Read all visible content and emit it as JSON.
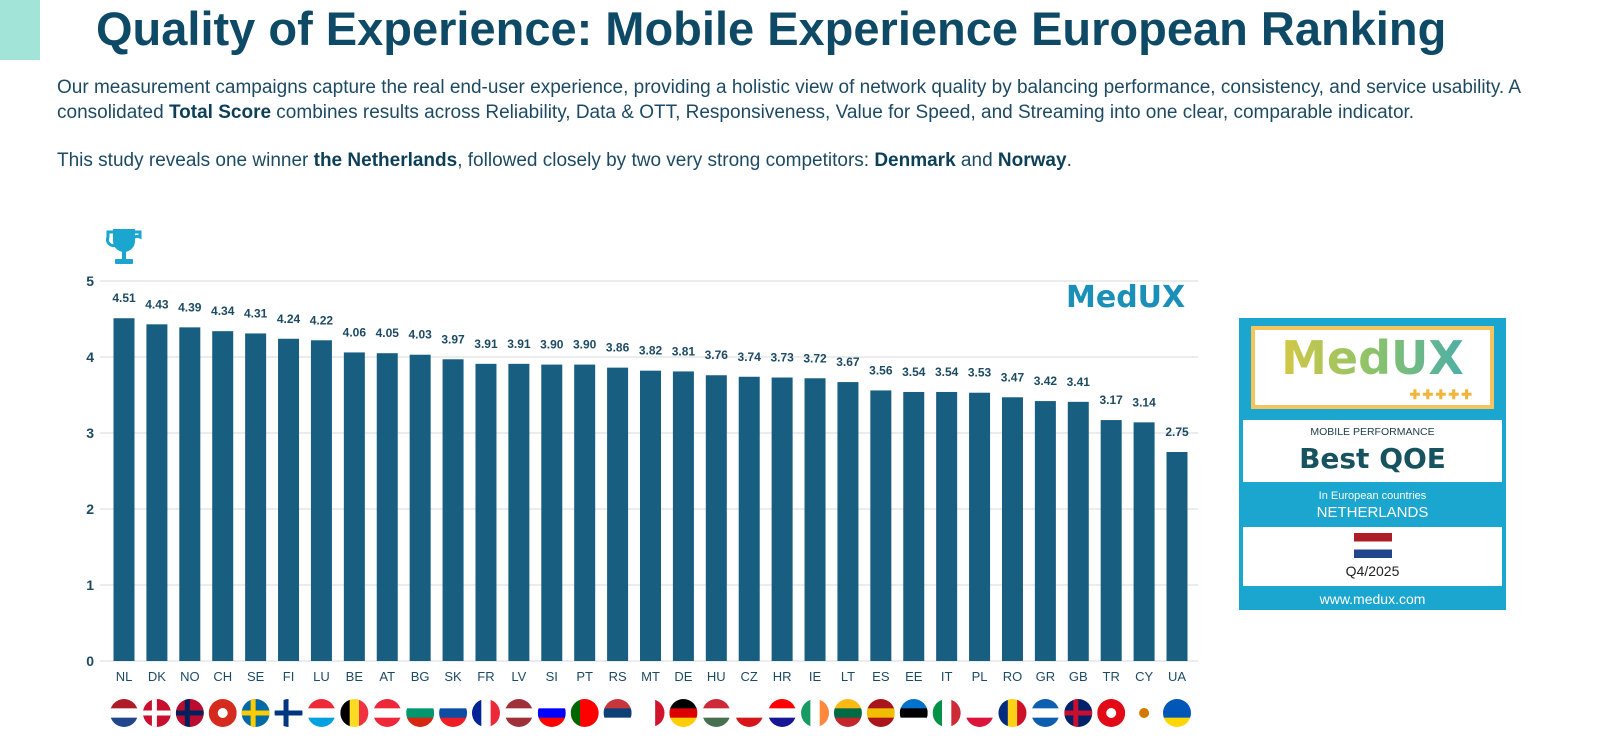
{
  "title": "Quality of Experience: Mobile Experience European Ranking",
  "intro": {
    "p1_a": "Our measurement campaigns capture the real end-user experience, providing a holistic view of network quality by balancing performance, consistency, and service usability. A consolidated ",
    "p1_bold": "Total Score",
    "p1_b": " combines results across Reliability, Data & OTT, Responsiveness, Value for Speed, and Streaming into one clear, comparable indicator.",
    "p2_a": "This study reveals one winner ",
    "p2_b1": "the Netherlands",
    "p2_c": ", followed closely by two very strong competitors: ",
    "p2_b2": "Denmark",
    "p2_d": " and ",
    "p2_b3": "Norway",
    "p2_e": "."
  },
  "chart_watermark": "MedUX",
  "winner_icon": "trophy-icon",
  "chart_data": {
    "type": "bar",
    "categories": [
      "NL",
      "DK",
      "NO",
      "CH",
      "SE",
      "FI",
      "LU",
      "BE",
      "AT",
      "BG",
      "SK",
      "FR",
      "LV",
      "SI",
      "PT",
      "RS",
      "MT",
      "DE",
      "HU",
      "CZ",
      "HR",
      "IE",
      "LT",
      "ES",
      "EE",
      "IT",
      "PL",
      "RO",
      "GR",
      "GB",
      "TR",
      "CY",
      "UA"
    ],
    "values": [
      4.51,
      4.43,
      4.39,
      4.34,
      4.31,
      4.24,
      4.22,
      4.06,
      4.05,
      4.03,
      3.97,
      3.91,
      3.91,
      3.9,
      3.9,
      3.86,
      3.82,
      3.81,
      3.76,
      3.74,
      3.73,
      3.72,
      3.67,
      3.56,
      3.54,
      3.54,
      3.53,
      3.47,
      3.42,
      3.41,
      3.17,
      3.14,
      2.75
    ],
    "ylim": [
      0,
      5
    ],
    "yticks": [
      "0",
      "1",
      "2",
      "3",
      "4",
      "5"
    ],
    "grid": true,
    "bar_color": "#175e80",
    "title": "",
    "xlabel": "",
    "ylabel": ""
  },
  "badge": {
    "logo": "MedUX",
    "category": "MOBILE PERFORMANCE",
    "award": "Best QOE",
    "scope": "In European countries",
    "winner": "NETHERLANDS",
    "period": "Q4/2025",
    "url": "www.medux.com",
    "color": "#1aa6cf"
  }
}
